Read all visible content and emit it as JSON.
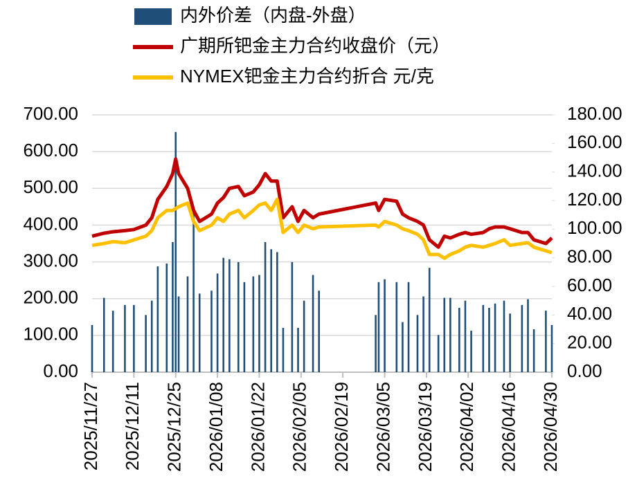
{
  "chart_data": {
    "type": "bar_line",
    "legend_position": "top",
    "x": [
      "2025/11/27",
      "2025/12/01",
      "2025/12/04",
      "2025/12/08",
      "2025/12/11",
      "2025/12/15",
      "2025/12/17",
      "2025/12/19",
      "2025/12/22",
      "2025/12/24",
      "2025/12/25",
      "2025/12/26",
      "2025/12/29",
      "2025/12/31",
      "2026/01/02",
      "2026/01/06",
      "2026/01/08",
      "2026/01/10",
      "2026/01/12",
      "2026/01/15",
      "2026/01/17",
      "2026/01/20",
      "2026/01/22",
      "2026/01/24",
      "2026/01/26",
      "2026/01/28",
      "2026/01/30",
      "2026/02/02",
      "2026/02/04",
      "2026/02/06",
      "2026/02/09",
      "2026/02/11",
      "2026/03/02",
      "2026/03/03",
      "2026/03/05",
      "2026/03/09",
      "2026/03/11",
      "2026/03/13",
      "2026/03/16",
      "2026/03/18",
      "2026/03/20",
      "2026/03/23",
      "2026/03/25",
      "2026/03/27",
      "2026/03/30",
      "2026/04/01",
      "2026/04/03",
      "2026/04/07",
      "2026/04/09",
      "2026/04/11",
      "2026/04/14",
      "2026/04/16",
      "2026/04/20",
      "2026/04/22",
      "2026/04/24",
      "2026/04/28",
      "2026/04/30"
    ],
    "series": [
      {
        "name": "内外价差（内盘-外盘）",
        "type": "bar",
        "axis": "y2",
        "color": "#1f4e79",
        "values": [
          33,
          52,
          43,
          47,
          47,
          40,
          50,
          74,
          76,
          91,
          168,
          53,
          67,
          113,
          55,
          57,
          69,
          80,
          79,
          77,
          63,
          67,
          68,
          91,
          86,
          84,
          31,
          77,
          31,
          50,
          68,
          57,
          40,
          63,
          65,
          63,
          35,
          63,
          40,
          53,
          73,
          26,
          52,
          52,
          45,
          50,
          29,
          47,
          45,
          48,
          50,
          41,
          47,
          51,
          30,
          43,
          33
        ]
      },
      {
        "name": "广期所钯金主力合约收盘价（元）",
        "type": "line",
        "axis": "y",
        "color": "#c00000",
        "values": [
          370,
          378,
          382,
          385,
          388,
          400,
          420,
          470,
          505,
          540,
          580,
          540,
          500,
          440,
          410,
          430,
          460,
          475,
          500,
          505,
          480,
          490,
          510,
          540,
          520,
          520,
          420,
          450,
          410,
          440,
          420,
          430,
          460,
          440,
          470,
          465,
          430,
          420,
          410,
          400,
          360,
          340,
          370,
          365,
          375,
          380,
          375,
          380,
          390,
          395,
          395,
          390,
          380,
          380,
          360,
          350,
          365
        ]
      },
      {
        "name": "NYMEX钯金主力合约折合 元/克",
        "type": "line",
        "axis": "y",
        "color": "#ffc000",
        "values": [
          345,
          350,
          355,
          352,
          360,
          370,
          385,
          420,
          440,
          440,
          445,
          450,
          460,
          410,
          385,
          400,
          420,
          410,
          430,
          440,
          420,
          440,
          455,
          460,
          440,
          470,
          380,
          400,
          380,
          400,
          390,
          395,
          400,
          395,
          410,
          400,
          390,
          385,
          375,
          360,
          320,
          320,
          310,
          320,
          330,
          340,
          345,
          340,
          345,
          350,
          360,
          345,
          350,
          352,
          340,
          330,
          325
        ]
      }
    ],
    "xlim": [
      "2025/11/27",
      "2026/04/30"
    ],
    "xticks": [
      "2025/11/27",
      "2025/12/11",
      "2025/12/25",
      "2026/01/08",
      "2026/01/22",
      "2026/02/05",
      "2026/02/19",
      "2026/03/05",
      "2026/03/19",
      "2026/04/02",
      "2026/04/16",
      "2026/04/30"
    ],
    "ylim": [
      0,
      700
    ],
    "yticks": [
      {
        "value": 0,
        "label": "0.00"
      },
      {
        "value": 100,
        "label": "100.00"
      },
      {
        "value": 200,
        "label": "200.00"
      },
      {
        "value": 300,
        "label": "300.00"
      },
      {
        "value": 400,
        "label": "400.00"
      },
      {
        "value": 500,
        "label": "500.00"
      },
      {
        "value": 600,
        "label": "600.00"
      },
      {
        "value": 700,
        "label": "700.00"
      }
    ],
    "y2lim": [
      0,
      180
    ],
    "y2ticks": [
      {
        "value": 0,
        "label": "0.00"
      },
      {
        "value": 20,
        "label": "20.00"
      },
      {
        "value": 40,
        "label": "40.00"
      },
      {
        "value": 60,
        "label": "60.00"
      },
      {
        "value": 80,
        "label": "80.00"
      },
      {
        "value": 100,
        "label": "100.00"
      },
      {
        "value": 120,
        "label": "120.00"
      },
      {
        "value": 140,
        "label": "140.00"
      },
      {
        "value": 160,
        "label": "160.00"
      },
      {
        "value": 180,
        "label": "180.00"
      }
    ],
    "grid": true
  }
}
